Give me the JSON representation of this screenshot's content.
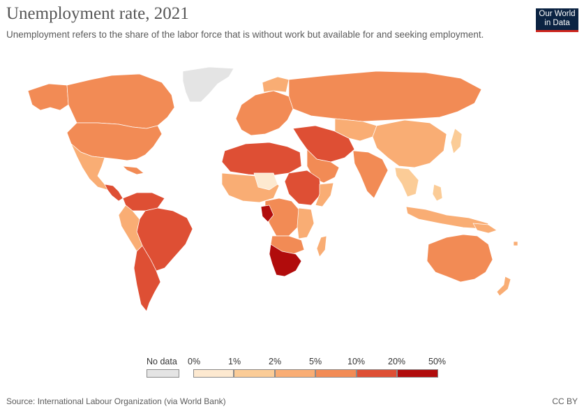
{
  "header": {
    "title": "Unemployment rate, 2021",
    "subtitle": "Unemployment refers to the share of the labor force that is without work but available for and seeking employment."
  },
  "logo": {
    "line1": "Our World",
    "line2": "in Data"
  },
  "legend": {
    "no_data_label": "No data",
    "no_data_color": "#e4e4e4",
    "thresholds": [
      "0%",
      "1%",
      "2%",
      "5%",
      "10%",
      "20%",
      "50%"
    ],
    "bins": [
      {
        "range": "0–1%",
        "color": "#fde9d0"
      },
      {
        "range": "1–2%",
        "color": "#fbcc97"
      },
      {
        "range": "2–5%",
        "color": "#f9ad74"
      },
      {
        "range": "5–10%",
        "color": "#f28b55"
      },
      {
        "range": "10–20%",
        "color": "#de4f34"
      },
      {
        "range": "20–50%",
        "color": "#b10c0c"
      }
    ]
  },
  "footer": {
    "source": "Source: International Labour Organization (via World Bank)",
    "license": "CC BY"
  }
}
